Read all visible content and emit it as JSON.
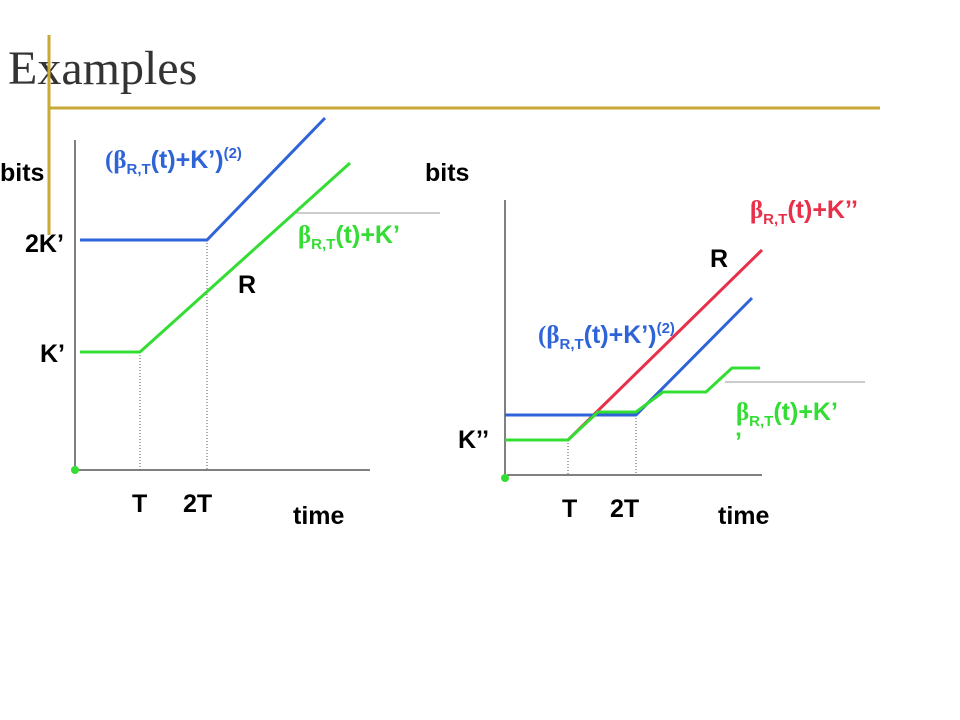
{
  "title": "Examples",
  "left": {
    "y_label": "bits",
    "x_label": "time",
    "ticks_y": [
      "2K’",
      "K’"
    ],
    "ticks_x": [
      "T",
      "2T"
    ],
    "rate": "R",
    "blue_label": {
      "base": "(β",
      "sub": "R,T",
      "rest": "(t)+K’)",
      "sup": "(2)"
    },
    "green_label": {
      "base": "β",
      "sub": "R,T",
      "rest": "(t)+K’"
    }
  },
  "right": {
    "y_label": "bits",
    "x_label": "time",
    "ticks_y": [
      "K’’"
    ],
    "ticks_x": [
      "T",
      "2T"
    ],
    "rate": "R",
    "red_label": {
      "base": "β",
      "sub": "R,T",
      "rest": "(t)+K’’"
    },
    "blue_label": {
      "base": "(β",
      "sub": "R,T",
      "rest": "(t)+K’)",
      "sup": "(2)"
    },
    "green_label": {
      "base": "β",
      "sub": "R,T",
      "rest": "(t)+K’",
      "wrap": "’"
    }
  }
}
